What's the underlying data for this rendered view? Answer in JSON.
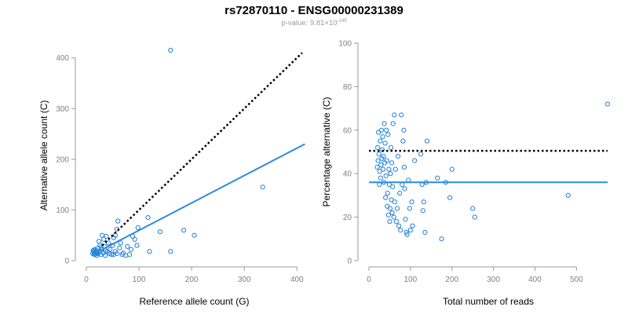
{
  "title": "rs72870110 - ENSG00000231389",
  "subtitle": {
    "prefix": "p-value: 9.81",
    "times": "×",
    "base": "10",
    "exponent": "-149"
  },
  "colors": {
    "points": "#1f7fd9",
    "fit": "#2a8be0",
    "reference": "#000000",
    "axis": "#9a9a9a",
    "tick_text": "#7f7f7f"
  },
  "chart_data": [
    {
      "type": "scatter",
      "xlabel": "Reference allele count (G)",
      "ylabel": "Alternative allele count (C)",
      "xlim": [
        0,
        410
      ],
      "ylim": [
        0,
        415
      ],
      "xticks": [
        0,
        100,
        200,
        300,
        400
      ],
      "yticks": [
        0,
        100,
        200,
        300,
        400
      ],
      "grid": false,
      "reference_line": {
        "style": "dotted",
        "x": [
          30,
          410
        ],
        "y": [
          30,
          410
        ]
      },
      "fit_line": {
        "style": "solid",
        "x": [
          10,
          415
        ],
        "y": [
          11,
          230
        ]
      },
      "points": [
        [
          160,
          415
        ],
        [
          335,
          145
        ],
        [
          185,
          60
        ],
        [
          205,
          50
        ],
        [
          160,
          18
        ],
        [
          140,
          57
        ],
        [
          117,
          85
        ],
        [
          120,
          18
        ],
        [
          98,
          65
        ],
        [
          96,
          30
        ],
        [
          92,
          42
        ],
        [
          88,
          48
        ],
        [
          85,
          22
        ],
        [
          82,
          12
        ],
        [
          78,
          28
        ],
        [
          75,
          10
        ],
        [
          70,
          15
        ],
        [
          68,
          12
        ],
        [
          65,
          35
        ],
        [
          63,
          25
        ],
        [
          60,
          78
        ],
        [
          58,
          62
        ],
        [
          55,
          50
        ],
        [
          52,
          45
        ],
        [
          50,
          30
        ],
        [
          48,
          12
        ],
        [
          45,
          22
        ],
        [
          42,
          35
        ],
        [
          40,
          18
        ],
        [
          38,
          48
        ],
        [
          36,
          10
        ],
        [
          35,
          28
        ],
        [
          33,
          42
        ],
        [
          32,
          15
        ],
        [
          30,
          22
        ],
        [
          28,
          12
        ],
        [
          26,
          30
        ],
        [
          25,
          18
        ],
        [
          24,
          38
        ],
        [
          22,
          14
        ],
        [
          21,
          24
        ],
        [
          20,
          10
        ],
        [
          19,
          20
        ],
        [
          18,
          13
        ],
        [
          17,
          16
        ],
        [
          16,
          22
        ],
        [
          15,
          12
        ],
        [
          14,
          18
        ],
        [
          13,
          20
        ],
        [
          12,
          14
        ],
        [
          30,
          50
        ],
        [
          44,
          14
        ],
        [
          52,
          12
        ],
        [
          58,
          14
        ],
        [
          36,
          20
        ],
        [
          28,
          26
        ],
        [
          20,
          16
        ],
        [
          55,
          18
        ]
      ]
    },
    {
      "type": "scatter",
      "xlabel": "Total number of reads",
      "ylabel": "Percentage alternative (C)",
      "xlim": [
        0,
        575
      ],
      "ylim": [
        0,
        100
      ],
      "xticks": [
        0,
        100,
        200,
        300,
        400,
        500
      ],
      "yticks": [
        0,
        20,
        40,
        60,
        80,
        100
      ],
      "grid": false,
      "reference_line": {
        "style": "dotted",
        "x": [
          0,
          575
        ],
        "y": [
          50.5,
          50.5
        ]
      },
      "fit_line": {
        "style": "solid",
        "x": [
          0,
          575
        ],
        "y": [
          36,
          36
        ]
      },
      "points": [
        [
          575,
          72
        ],
        [
          480,
          30
        ],
        [
          255,
          20
        ],
        [
          250,
          24
        ],
        [
          200,
          42
        ],
        [
          195,
          29
        ],
        [
          185,
          36
        ],
        [
          175,
          10
        ],
        [
          165,
          38
        ],
        [
          140,
          55
        ],
        [
          138,
          36
        ],
        [
          135,
          13
        ],
        [
          132,
          27
        ],
        [
          130,
          23
        ],
        [
          128,
          35
        ],
        [
          125,
          49
        ],
        [
          110,
          46
        ],
        [
          105,
          16
        ],
        [
          103,
          27
        ],
        [
          100,
          14
        ],
        [
          98,
          24
        ],
        [
          95,
          37
        ],
        [
          92,
          12
        ],
        [
          90,
          13
        ],
        [
          88,
          19
        ],
        [
          86,
          33
        ],
        [
          85,
          43
        ],
        [
          84,
          60
        ],
        [
          82,
          55
        ],
        [
          80,
          35
        ],
        [
          78,
          67
        ],
        [
          76,
          14
        ],
        [
          74,
          31
        ],
        [
          72,
          16
        ],
        [
          70,
          48
        ],
        [
          68,
          24
        ],
        [
          66,
          18
        ],
        [
          64,
          42
        ],
        [
          62,
          27
        ],
        [
          61,
          67
        ],
        [
          60,
          20
        ],
        [
          58,
          63
        ],
        [
          57,
          34
        ],
        [
          56,
          22
        ],
        [
          55,
          45
        ],
        [
          54,
          28
        ],
        [
          53,
          52
        ],
        [
          52,
          40
        ],
        [
          51,
          24
        ],
        [
          50,
          18
        ],
        [
          49,
          35
        ],
        [
          48,
          42
        ],
        [
          47,
          21
        ],
        [
          46,
          58
        ],
        [
          45,
          31
        ],
        [
          44,
          25
        ],
        [
          43,
          46
        ],
        [
          42,
          60
        ],
        [
          41,
          39
        ],
        [
          40,
          29
        ],
        [
          39,
          54
        ],
        [
          38,
          45
        ],
        [
          37,
          63
        ],
        [
          36,
          36
        ],
        [
          35,
          48
        ],
        [
          34,
          42
        ],
        [
          33,
          57
        ],
        [
          32,
          51
        ],
        [
          31,
          47
        ],
        [
          30,
          60
        ],
        [
          29,
          44
        ],
        [
          28,
          38
        ],
        [
          27,
          55
        ],
        [
          26,
          41
        ],
        [
          25,
          35
        ],
        [
          24,
          49
        ],
        [
          23,
          59
        ],
        [
          22,
          46
        ],
        [
          21,
          52
        ],
        [
          20,
          43
        ]
      ]
    }
  ]
}
